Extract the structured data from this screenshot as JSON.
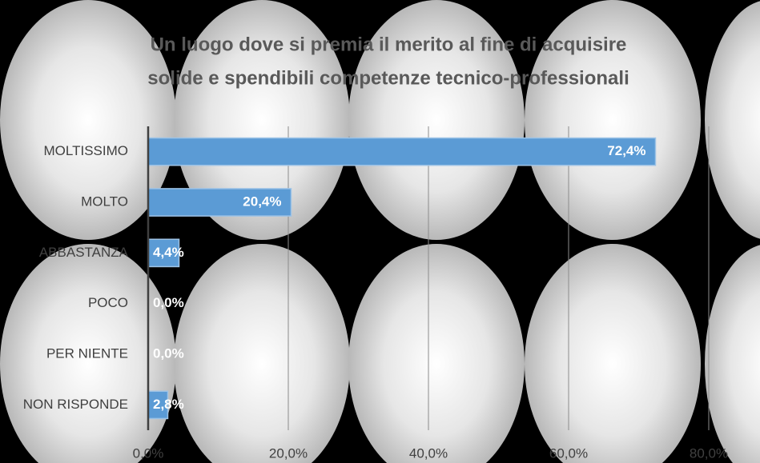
{
  "chart_data": {
    "type": "bar",
    "orientation": "horizontal",
    "title": "Un luogo dove si premia il merito al fine di acquisire",
    "subtitle": "solide e spendibili competenze tecnico-professionali",
    "categories": [
      "MOLTISSIMO",
      "MOLTO",
      "ABBASTANZA",
      "POCO",
      "PER NIENTE",
      "NON RISPONDE"
    ],
    "values": [
      72.4,
      20.4,
      4.4,
      0,
      0,
      2.8
    ],
    "value_labels": [
      "72,4%",
      "20,4%",
      "4,4%",
      "0,0%",
      "0,0%",
      "2,8%"
    ],
    "color": "#5b9bd5",
    "xlim": [
      0,
      80
    ],
    "xticks": [
      {
        "value": 0,
        "label": "0,0%"
      },
      {
        "value": 20,
        "label": "20,0%"
      },
      {
        "value": 40,
        "label": "40,0%"
      },
      {
        "value": 60,
        "label": "60,0%"
      },
      {
        "value": 80,
        "label": "80,0%"
      }
    ],
    "grid": true
  }
}
